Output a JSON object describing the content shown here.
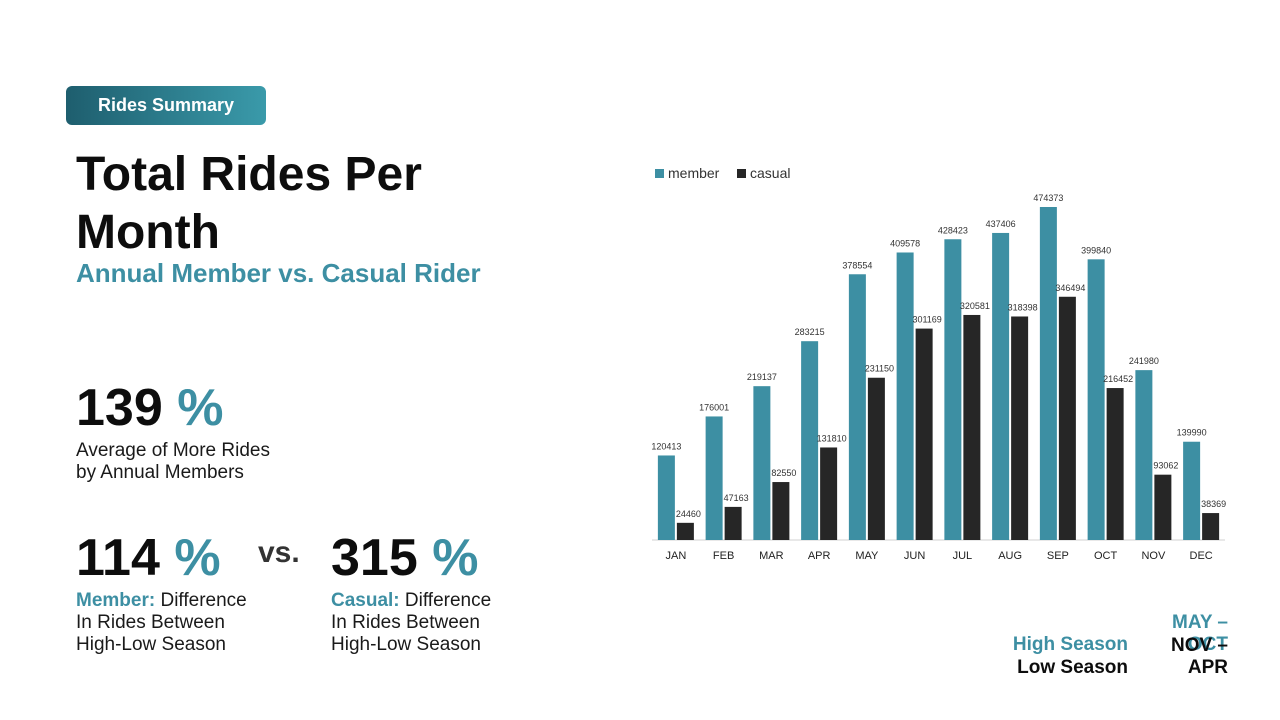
{
  "badge": "Rides Summary",
  "title": "Total Rides Per Month",
  "subtitle": "Annual Member vs. Casual Rider",
  "avg": {
    "value": "139",
    "pct": "%",
    "line1": "Average of More Rides",
    "line2": "by Annual Members"
  },
  "member_stat": {
    "value": "114",
    "pct": "%",
    "label": "Member:",
    "line1": " Difference",
    "line2": "In Rides Between",
    "line3": "High-Low Season"
  },
  "vs": "vs.",
  "casual_stat": {
    "value": "315",
    "pct": "%",
    "label": "Casual:",
    "line1": " Difference",
    "line2": "In Rides Between",
    "line3": "High-Low Season"
  },
  "seasons": {
    "high_label": "High Season",
    "high_range": "MAY – OCT",
    "low_label": "Low Season",
    "low_range": "NOV – APR"
  },
  "colors": {
    "member": "#3d8fa3",
    "casual": "#262626",
    "accent": "#3d8fa3"
  },
  "chart_data": {
    "type": "bar",
    "categories": [
      "JAN",
      "FEB",
      "MAR",
      "APR",
      "MAY",
      "JUN",
      "JUL",
      "AUG",
      "SEP",
      "OCT",
      "NOV",
      "DEC"
    ],
    "series": [
      {
        "name": "member",
        "values": [
          120413,
          176001,
          219137,
          283215,
          378554,
          409578,
          428423,
          437406,
          474373,
          399840,
          241980,
          139990
        ]
      },
      {
        "name": "casual",
        "values": [
          24460,
          47163,
          82550,
          131810,
          231150,
          301169,
          320581,
          318398,
          346494,
          216452,
          93062,
          38369
        ]
      }
    ],
    "legend": "top-left",
    "ylim": [
      0,
      474373
    ],
    "grid": false
  }
}
